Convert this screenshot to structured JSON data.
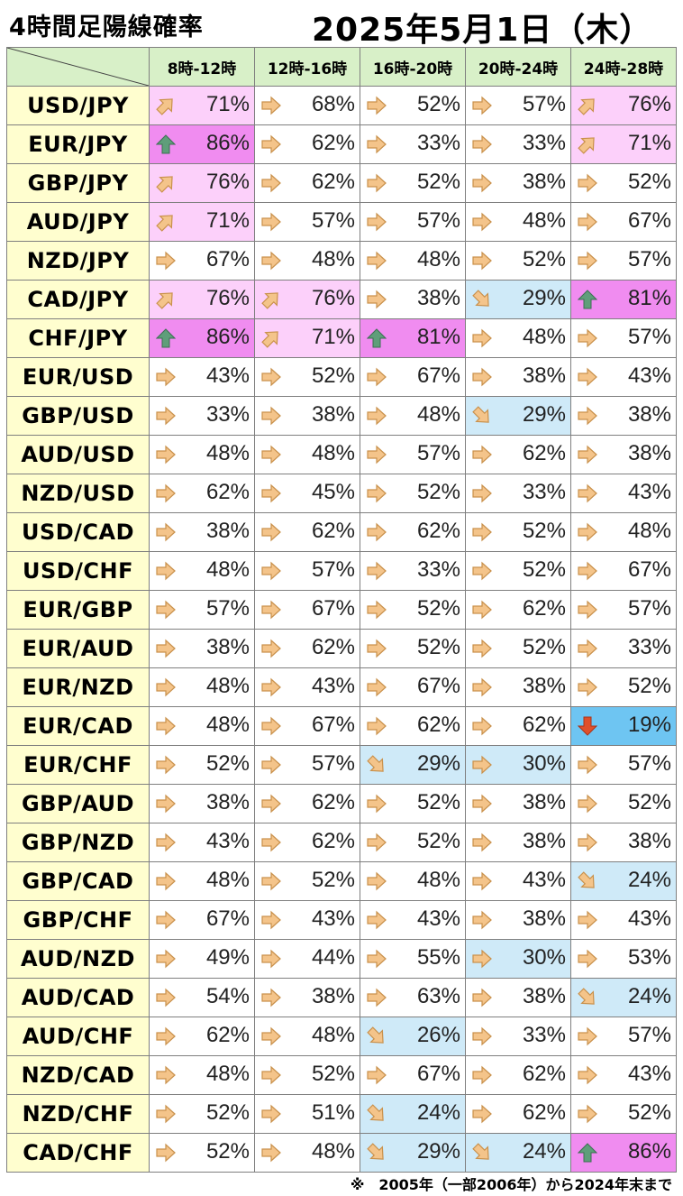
{
  "title": "4時間足陽線確率",
  "date": "2025年5月1日（木）",
  "columns": [
    "8時-12時",
    "12時-16時",
    "16時-20時",
    "20時-24時",
    "24時-28時"
  ],
  "colors": {
    "strong_up": "#f08cf0",
    "up": "#fcd0fa",
    "down": "#cfeaf8",
    "strong_down": "#6ec5f2",
    "neutral": "#ffffff",
    "header_bg": "#d8f0c8",
    "pair_bg": "#fffecf"
  },
  "icons": {
    "up": "up-arrow-icon",
    "upright": "up-right-arrow-icon",
    "right": "right-arrow-icon",
    "downright": "down-right-arrow-icon",
    "down": "down-arrow-icon"
  },
  "rows": [
    {
      "pair": "USD/JPY",
      "cells": [
        {
          "v": "71%",
          "t": "upright"
        },
        {
          "v": "68%",
          "t": "right"
        },
        {
          "v": "52%",
          "t": "right"
        },
        {
          "v": "57%",
          "t": "right"
        },
        {
          "v": "76%",
          "t": "upright"
        }
      ]
    },
    {
      "pair": "EUR/JPY",
      "cells": [
        {
          "v": "86%",
          "t": "up"
        },
        {
          "v": "62%",
          "t": "right"
        },
        {
          "v": "33%",
          "t": "right"
        },
        {
          "v": "33%",
          "t": "right"
        },
        {
          "v": "71%",
          "t": "upright"
        }
      ]
    },
    {
      "pair": "GBP/JPY",
      "cells": [
        {
          "v": "76%",
          "t": "upright"
        },
        {
          "v": "62%",
          "t": "right"
        },
        {
          "v": "52%",
          "t": "right"
        },
        {
          "v": "38%",
          "t": "right"
        },
        {
          "v": "52%",
          "t": "right"
        }
      ]
    },
    {
      "pair": "AUD/JPY",
      "cells": [
        {
          "v": "71%",
          "t": "upright"
        },
        {
          "v": "57%",
          "t": "right"
        },
        {
          "v": "57%",
          "t": "right"
        },
        {
          "v": "48%",
          "t": "right"
        },
        {
          "v": "67%",
          "t": "right"
        }
      ]
    },
    {
      "pair": "NZD/JPY",
      "cells": [
        {
          "v": "67%",
          "t": "right"
        },
        {
          "v": "48%",
          "t": "right"
        },
        {
          "v": "48%",
          "t": "right"
        },
        {
          "v": "52%",
          "t": "right"
        },
        {
          "v": "57%",
          "t": "right"
        }
      ]
    },
    {
      "pair": "CAD/JPY",
      "cells": [
        {
          "v": "76%",
          "t": "upright"
        },
        {
          "v": "76%",
          "t": "upright"
        },
        {
          "v": "38%",
          "t": "right"
        },
        {
          "v": "29%",
          "t": "downright"
        },
        {
          "v": "81%",
          "t": "up"
        }
      ]
    },
    {
      "pair": "CHF/JPY",
      "cells": [
        {
          "v": "86%",
          "t": "up"
        },
        {
          "v": "71%",
          "t": "upright"
        },
        {
          "v": "81%",
          "t": "up"
        },
        {
          "v": "48%",
          "t": "right"
        },
        {
          "v": "57%",
          "t": "right"
        }
      ]
    },
    {
      "pair": "EUR/USD",
      "cells": [
        {
          "v": "43%",
          "t": "right"
        },
        {
          "v": "52%",
          "t": "right"
        },
        {
          "v": "67%",
          "t": "right"
        },
        {
          "v": "38%",
          "t": "right"
        },
        {
          "v": "43%",
          "t": "right"
        }
      ]
    },
    {
      "pair": "GBP/USD",
      "cells": [
        {
          "v": "33%",
          "t": "right"
        },
        {
          "v": "38%",
          "t": "right"
        },
        {
          "v": "48%",
          "t": "right"
        },
        {
          "v": "29%",
          "t": "downright"
        },
        {
          "v": "38%",
          "t": "right"
        }
      ]
    },
    {
      "pair": "AUD/USD",
      "cells": [
        {
          "v": "48%",
          "t": "right"
        },
        {
          "v": "48%",
          "t": "right"
        },
        {
          "v": "57%",
          "t": "right"
        },
        {
          "v": "62%",
          "t": "right"
        },
        {
          "v": "38%",
          "t": "right"
        }
      ]
    },
    {
      "pair": "NZD/USD",
      "cells": [
        {
          "v": "62%",
          "t": "right"
        },
        {
          "v": "45%",
          "t": "right"
        },
        {
          "v": "52%",
          "t": "right"
        },
        {
          "v": "33%",
          "t": "right"
        },
        {
          "v": "43%",
          "t": "right"
        }
      ]
    },
    {
      "pair": "USD/CAD",
      "cells": [
        {
          "v": "38%",
          "t": "right"
        },
        {
          "v": "62%",
          "t": "right"
        },
        {
          "v": "62%",
          "t": "right"
        },
        {
          "v": "52%",
          "t": "right"
        },
        {
          "v": "48%",
          "t": "right"
        }
      ]
    },
    {
      "pair": "USD/CHF",
      "cells": [
        {
          "v": "48%",
          "t": "right"
        },
        {
          "v": "57%",
          "t": "right"
        },
        {
          "v": "33%",
          "t": "right"
        },
        {
          "v": "52%",
          "t": "right"
        },
        {
          "v": "67%",
          "t": "right"
        }
      ]
    },
    {
      "pair": "EUR/GBP",
      "cells": [
        {
          "v": "57%",
          "t": "right"
        },
        {
          "v": "67%",
          "t": "right"
        },
        {
          "v": "52%",
          "t": "right"
        },
        {
          "v": "62%",
          "t": "right"
        },
        {
          "v": "57%",
          "t": "right"
        }
      ]
    },
    {
      "pair": "EUR/AUD",
      "cells": [
        {
          "v": "38%",
          "t": "right"
        },
        {
          "v": "62%",
          "t": "right"
        },
        {
          "v": "52%",
          "t": "right"
        },
        {
          "v": "52%",
          "t": "right"
        },
        {
          "v": "33%",
          "t": "right"
        }
      ]
    },
    {
      "pair": "EUR/NZD",
      "cells": [
        {
          "v": "48%",
          "t": "right"
        },
        {
          "v": "43%",
          "t": "right"
        },
        {
          "v": "67%",
          "t": "right"
        },
        {
          "v": "38%",
          "t": "right"
        },
        {
          "v": "52%",
          "t": "right"
        }
      ]
    },
    {
      "pair": "EUR/CAD",
      "cells": [
        {
          "v": "48%",
          "t": "right"
        },
        {
          "v": "67%",
          "t": "right"
        },
        {
          "v": "62%",
          "t": "right"
        },
        {
          "v": "62%",
          "t": "right"
        },
        {
          "v": "19%",
          "t": "down"
        }
      ]
    },
    {
      "pair": "EUR/CHF",
      "cells": [
        {
          "v": "52%",
          "t": "right"
        },
        {
          "v": "57%",
          "t": "right"
        },
        {
          "v": "29%",
          "t": "downright"
        },
        {
          "v": "30%",
          "t": "right",
          "bg": "down"
        },
        {
          "v": "57%",
          "t": "right"
        }
      ]
    },
    {
      "pair": "GBP/AUD",
      "cells": [
        {
          "v": "38%",
          "t": "right"
        },
        {
          "v": "62%",
          "t": "right"
        },
        {
          "v": "52%",
          "t": "right"
        },
        {
          "v": "38%",
          "t": "right"
        },
        {
          "v": "52%",
          "t": "right"
        }
      ]
    },
    {
      "pair": "GBP/NZD",
      "cells": [
        {
          "v": "43%",
          "t": "right"
        },
        {
          "v": "62%",
          "t": "right"
        },
        {
          "v": "52%",
          "t": "right"
        },
        {
          "v": "38%",
          "t": "right"
        },
        {
          "v": "38%",
          "t": "right"
        }
      ]
    },
    {
      "pair": "GBP/CAD",
      "cells": [
        {
          "v": "48%",
          "t": "right"
        },
        {
          "v": "52%",
          "t": "right"
        },
        {
          "v": "48%",
          "t": "right"
        },
        {
          "v": "43%",
          "t": "right"
        },
        {
          "v": "24%",
          "t": "downright"
        }
      ]
    },
    {
      "pair": "GBP/CHF",
      "cells": [
        {
          "v": "67%",
          "t": "right"
        },
        {
          "v": "43%",
          "t": "right"
        },
        {
          "v": "43%",
          "t": "right"
        },
        {
          "v": "38%",
          "t": "right"
        },
        {
          "v": "43%",
          "t": "right"
        }
      ]
    },
    {
      "pair": "AUD/NZD",
      "cells": [
        {
          "v": "49%",
          "t": "right"
        },
        {
          "v": "44%",
          "t": "right"
        },
        {
          "v": "55%",
          "t": "right"
        },
        {
          "v": "30%",
          "t": "right",
          "bg": "down"
        },
        {
          "v": "53%",
          "t": "right"
        }
      ]
    },
    {
      "pair": "AUD/CAD",
      "cells": [
        {
          "v": "54%",
          "t": "right"
        },
        {
          "v": "38%",
          "t": "right"
        },
        {
          "v": "63%",
          "t": "right"
        },
        {
          "v": "38%",
          "t": "right"
        },
        {
          "v": "24%",
          "t": "downright"
        }
      ]
    },
    {
      "pair": "AUD/CHF",
      "cells": [
        {
          "v": "62%",
          "t": "right"
        },
        {
          "v": "48%",
          "t": "right"
        },
        {
          "v": "26%",
          "t": "downright"
        },
        {
          "v": "33%",
          "t": "right"
        },
        {
          "v": "57%",
          "t": "right"
        }
      ]
    },
    {
      "pair": "NZD/CAD",
      "cells": [
        {
          "v": "48%",
          "t": "right"
        },
        {
          "v": "52%",
          "t": "right"
        },
        {
          "v": "67%",
          "t": "right"
        },
        {
          "v": "62%",
          "t": "right"
        },
        {
          "v": "43%",
          "t": "right"
        }
      ]
    },
    {
      "pair": "NZD/CHF",
      "cells": [
        {
          "v": "52%",
          "t": "right"
        },
        {
          "v": "51%",
          "t": "right"
        },
        {
          "v": "24%",
          "t": "downright"
        },
        {
          "v": "62%",
          "t": "right"
        },
        {
          "v": "52%",
          "t": "right"
        }
      ]
    },
    {
      "pair": "CAD/CHF",
      "cells": [
        {
          "v": "52%",
          "t": "right"
        },
        {
          "v": "48%",
          "t": "right"
        },
        {
          "v": "29%",
          "t": "downright"
        },
        {
          "v": "24%",
          "t": "downright"
        },
        {
          "v": "86%",
          "t": "up"
        }
      ]
    }
  ],
  "footnote": "※　2005年（一部2006年）から2024年末まで"
}
